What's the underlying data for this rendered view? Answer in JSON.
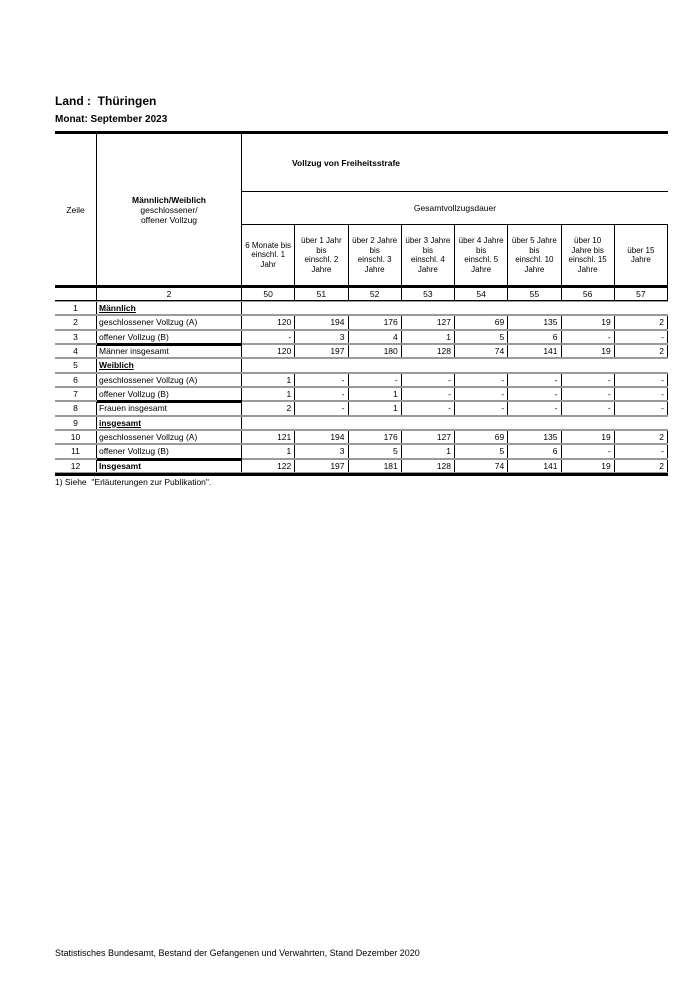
{
  "page": {
    "land_label": "Land :  Thüringen",
    "monat_label": "Monat: September 2023",
    "footnote": "1) Siehe  \"Erläuterungen zur Publikation\".",
    "footer": "Statistisches Bundesamt, Bestand der Gefangenen und Verwahrten, Stand Dezember 2020"
  },
  "table": {
    "corner_label": "Zeile",
    "stub_title": "Männlich/Weiblich",
    "stub_sub": "geschlossener/\noffener Vollzug",
    "span_title": "Vollzug von Freiheitsstrafe",
    "duration_title": "Gesamtvollzugsdauer",
    "stub_col_no": "2",
    "col_nos": [
      "50",
      "51",
      "52",
      "53",
      "54",
      "55",
      "56",
      "57"
    ],
    "col_headers": [
      "6 Monate bis\neinschl. 1\nJahr",
      "über 1 Jahr\nbis\neinschl. 2\nJahre",
      "über 2 Jahre\nbis\neinschl. 3\nJahre",
      "über 3 Jahre\nbis\neinschl. 4\nJahre",
      "über 4 Jahre\nbis\neinschl. 5\nJahre",
      "über 5 Jahre\nbis\neinschl. 10\nJahre",
      "über 10\nJahre bis\neinschl. 15\nJahre",
      "über 15\nJahre"
    ],
    "rows": [
      {
        "zeile": "1",
        "label": "Männlich",
        "type": "group",
        "values": []
      },
      {
        "zeile": "2",
        "label": "geschlossener Vollzug (A)",
        "values": [
          "120",
          "194",
          "176",
          "127",
          "69",
          "135",
          "19",
          "2"
        ]
      },
      {
        "zeile": "3",
        "label": "offener Vollzug (B)",
        "values": [
          "-",
          "3",
          "4",
          "1",
          "5",
          "6",
          "-",
          "-"
        ]
      },
      {
        "zeile": "4",
        "label": "Männer insgesamt",
        "values": [
          "120",
          "197",
          "180",
          "128",
          "74",
          "141",
          "19",
          "2"
        ]
      },
      {
        "zeile": "5",
        "label": "Weiblich",
        "type": "group",
        "values": []
      },
      {
        "zeile": "6",
        "label": "geschlossener Vollzug (A)",
        "values": [
          "1",
          "-",
          "-",
          "-",
          "-",
          "-",
          "-",
          "-"
        ]
      },
      {
        "zeile": "7",
        "label": "offener Vollzug (B)",
        "values": [
          "1",
          "-",
          "1",
          "-",
          "-",
          "-",
          "-",
          "-"
        ]
      },
      {
        "zeile": "8",
        "label": "Frauen insgesamt",
        "values": [
          "2",
          "-",
          "1",
          "-",
          "-",
          "-",
          "-",
          "-"
        ]
      },
      {
        "zeile": "9",
        "label": "insgesamt",
        "type": "group",
        "values": []
      },
      {
        "zeile": "10",
        "label": "geschlossener Vollzug (A)",
        "values": [
          "121",
          "194",
          "176",
          "127",
          "69",
          "135",
          "19",
          "2"
        ]
      },
      {
        "zeile": "11",
        "label": "offener Vollzug (B)",
        "values": [
          "1",
          "3",
          "5",
          "1",
          "5",
          "6",
          "-",
          "-"
        ]
      },
      {
        "zeile": "12",
        "label": "Insgesamt",
        "values": [
          "122",
          "197",
          "181",
          "128",
          "74",
          "141",
          "19",
          "2"
        ]
      }
    ]
  }
}
